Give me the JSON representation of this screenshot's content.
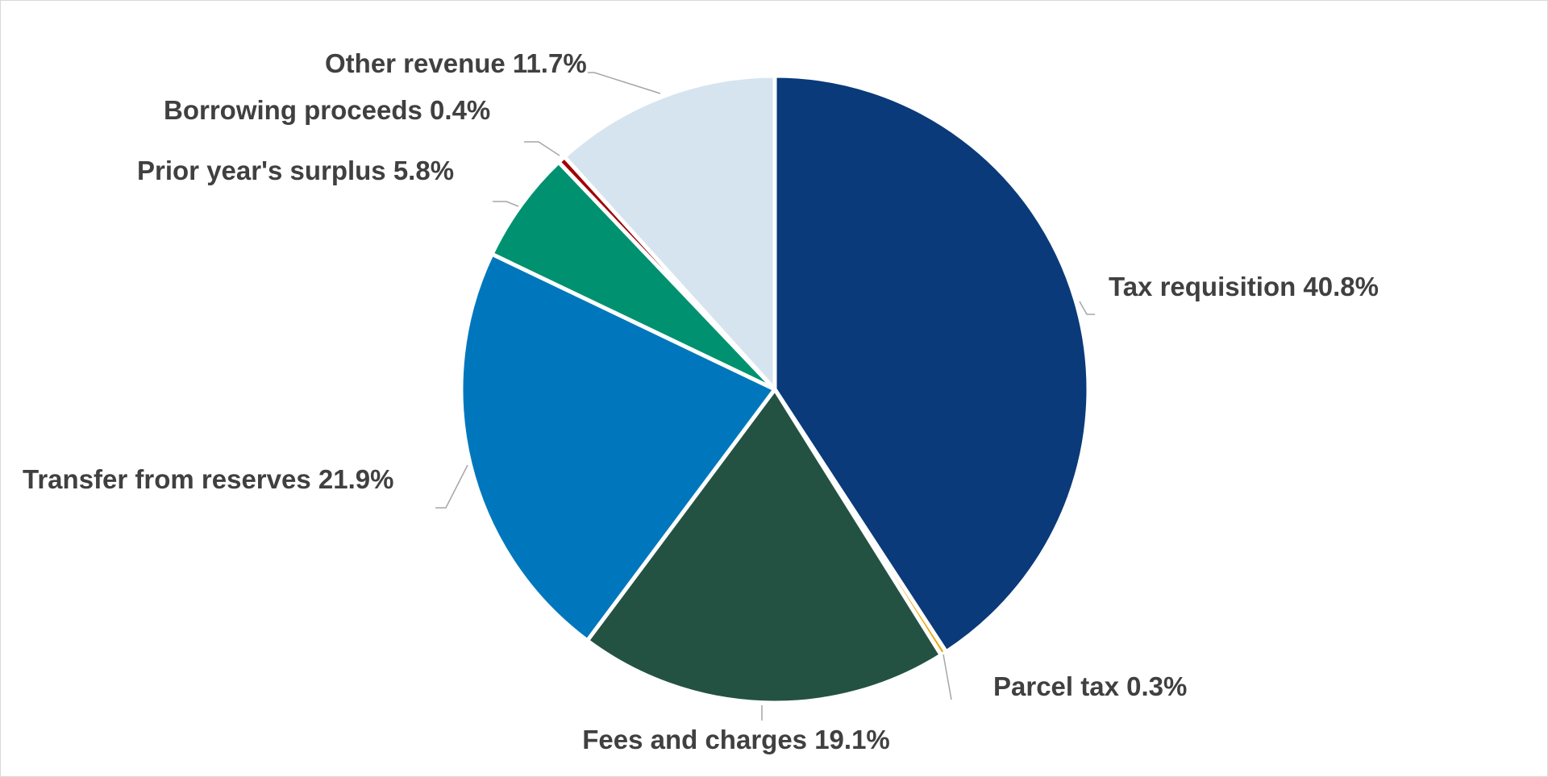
{
  "chart_data": {
    "type": "pie",
    "start_angle": "12 o'clock",
    "direction": "clockwise",
    "legend": "none (data labels with leader lines)",
    "slices": [
      {
        "label": "Tax requisition 40.8%",
        "name": "Tax requisition",
        "value": 40.8,
        "color": "#0a3a7a"
      },
      {
        "label": "Parcel tax 0.3%",
        "name": "Parcel tax",
        "value": 0.3,
        "color": "#e8a800"
      },
      {
        "label": "Fees and charges 19.1%",
        "name": "Fees and charges",
        "value": 19.1,
        "color": "#235243"
      },
      {
        "label": "Transfer from reserves 21.9%",
        "name": "Transfer from reserves",
        "value": 21.9,
        "color": "#0077bd"
      },
      {
        "label": "Prior year's surplus 5.8%",
        "name": "Prior year's surplus",
        "value": 5.8,
        "color": "#009170"
      },
      {
        "label": "Borrowing proceeds 0.4%",
        "name": "Borrowing proceeds",
        "value": 0.4,
        "color": "#a00000"
      },
      {
        "label": "Other revenue 11.7%",
        "name": "Other revenue",
        "value": 11.7,
        "color": "#d6e4f0"
      }
    ]
  }
}
